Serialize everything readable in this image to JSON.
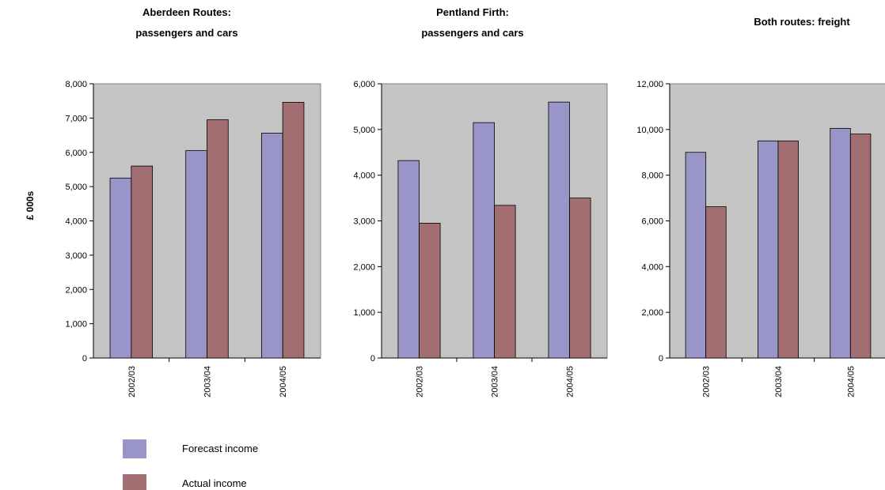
{
  "shared_ylabel": "£ 000s",
  "legend": {
    "forecast": "Forecast income",
    "actual": "Actual income"
  },
  "colors": {
    "forecast": "#9a95c9",
    "actual": "#a26e72",
    "plot_background": "#c4c4c4"
  },
  "chart_data": [
    {
      "type": "bar",
      "title_lines": [
        "Aberdeen Routes:",
        "passengers and cars"
      ],
      "categories": [
        "2002/03",
        "2003/04",
        "2004/05"
      ],
      "series": [
        {
          "name": "Forecast income",
          "values": [
            5250,
            6050,
            6560
          ]
        },
        {
          "name": "Actual income",
          "values": [
            5600,
            6950,
            7460
          ]
        }
      ],
      "ylim": [
        0,
        8000
      ],
      "yticks": [
        0,
        1000,
        2000,
        3000,
        4000,
        5000,
        6000,
        7000,
        8000
      ],
      "ytick_labels": [
        "0",
        "1,000",
        "2,000",
        "3,000",
        "4,000",
        "5,000",
        "6,000",
        "7,000",
        "8,000"
      ],
      "grid": false
    },
    {
      "type": "bar",
      "title_lines": [
        "Pentland Firth:",
        "passengers and cars"
      ],
      "categories": [
        "2002/03",
        "2003/04",
        "2004/05"
      ],
      "series": [
        {
          "name": "Forecast income",
          "values": [
            4320,
            5150,
            5600
          ]
        },
        {
          "name": "Actual income",
          "values": [
            2950,
            3340,
            3500
          ]
        }
      ],
      "ylim": [
        0,
        6000
      ],
      "yticks": [
        0,
        1000,
        2000,
        3000,
        4000,
        5000,
        6000
      ],
      "ytick_labels": [
        "0",
        "1,000",
        "2,000",
        "3,000",
        "4,000",
        "5,000",
        "6,000"
      ],
      "grid": false
    },
    {
      "type": "bar",
      "title_lines": [
        "Both routes: freight"
      ],
      "categories": [
        "2002/03",
        "2003/04",
        "2004/05"
      ],
      "series": [
        {
          "name": "Forecast income",
          "values": [
            9000,
            9500,
            10050
          ]
        },
        {
          "name": "Actual income",
          "values": [
            6620,
            9500,
            9800
          ]
        }
      ],
      "ylim": [
        0,
        12000
      ],
      "yticks": [
        0,
        2000,
        4000,
        6000,
        8000,
        10000,
        12000
      ],
      "ytick_labels": [
        "0",
        "2,000",
        "4,000",
        "6,000",
        "8,000",
        "10,000",
        "12,000"
      ],
      "grid": false
    }
  ]
}
